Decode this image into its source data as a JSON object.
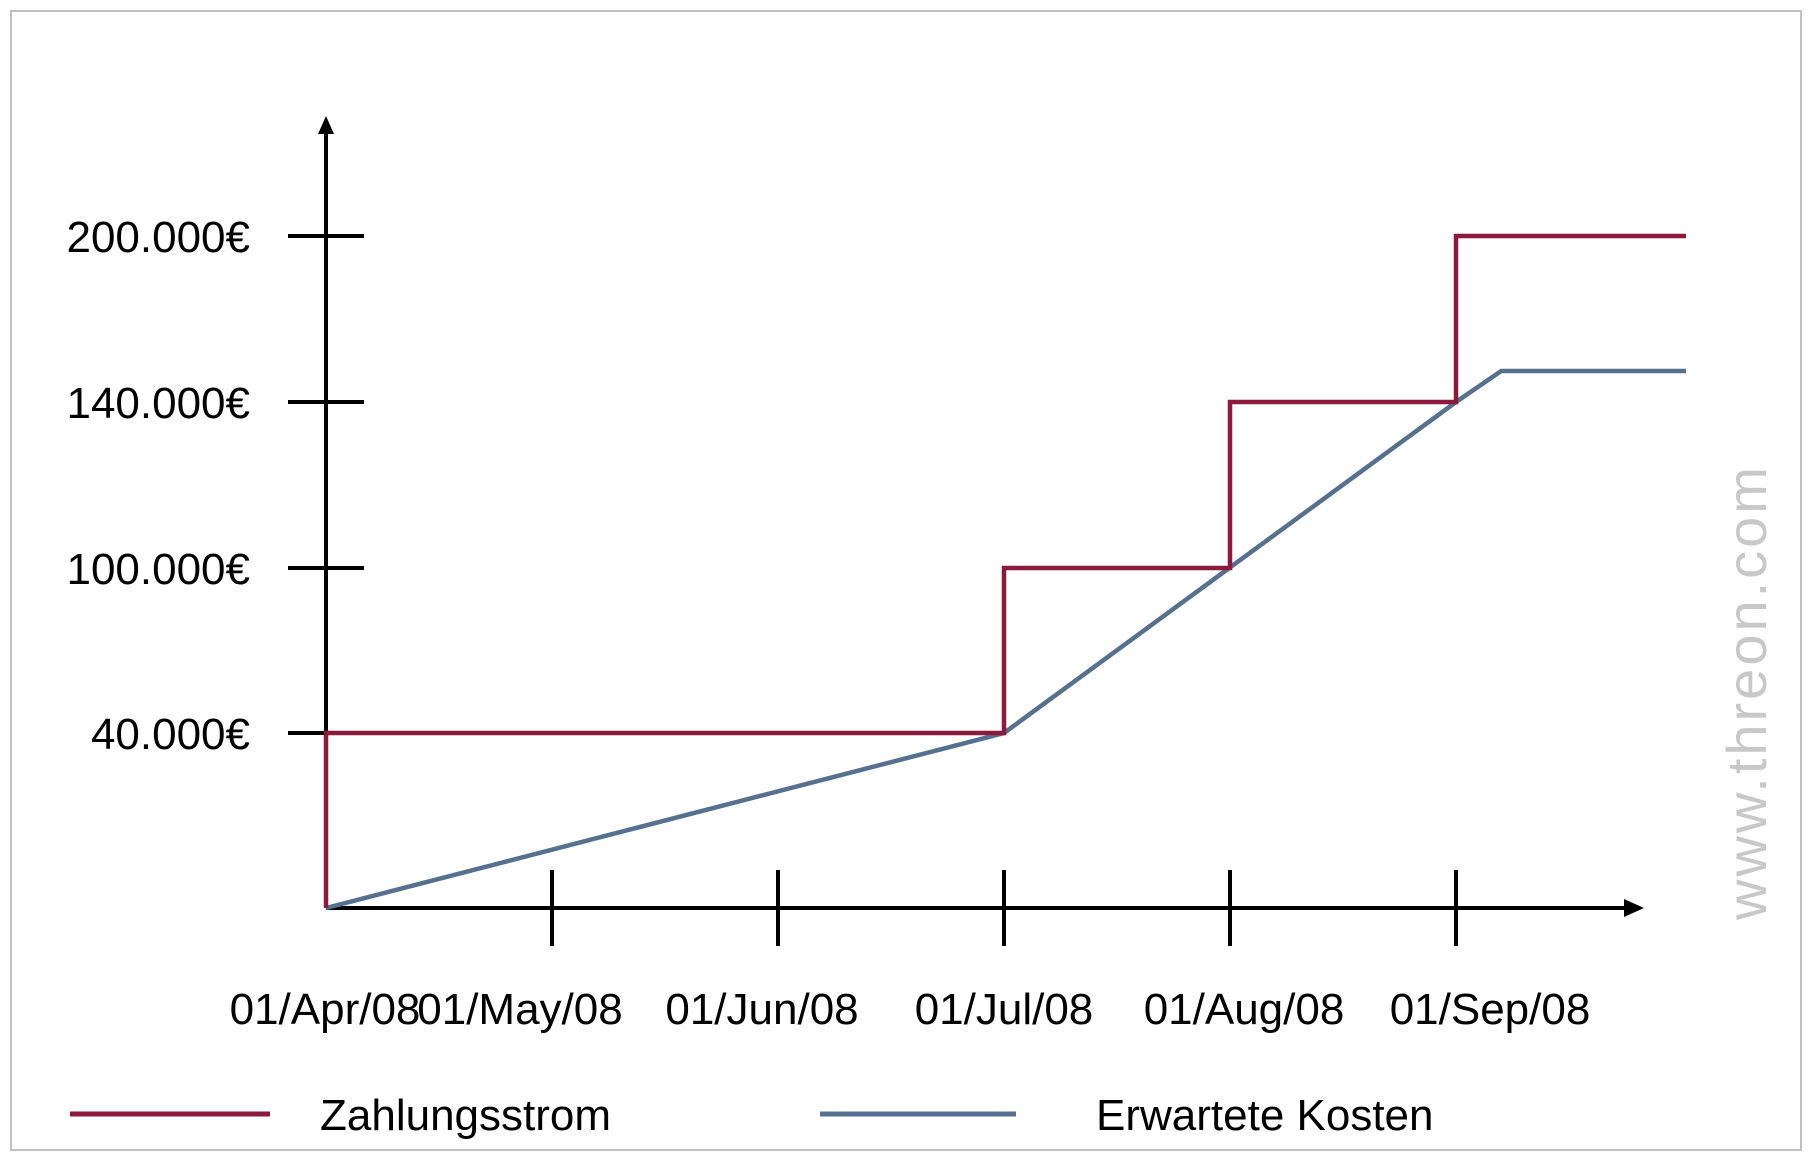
{
  "watermark": "www.threon.com",
  "chart_data": {
    "type": "line",
    "title": "",
    "xlabel": "",
    "ylabel": "",
    "x_ticks": [
      "01/Apr/08",
      "01/May/08",
      "01/Jun/08",
      "01/Jul/08",
      "01/Aug/08",
      "01/Sep/08"
    ],
    "y_ticks": [
      {
        "value": 40000,
        "label": "40.000€"
      },
      {
        "value": 100000,
        "label": "100.000€"
      },
      {
        "value": 140000,
        "label": "140.000€"
      },
      {
        "value": 200000,
        "label": "200.000€"
      }
    ],
    "series": [
      {
        "name": "Zahlungsstrom",
        "color": "#8b1a3c",
        "step": true,
        "points": [
          {
            "x": "01/Apr/08",
            "y": 0
          },
          {
            "x": "01/Apr/08",
            "y": 40000
          },
          {
            "x": "01/Jul/08",
            "y": 40000
          },
          {
            "x": "01/Jul/08",
            "y": 100000
          },
          {
            "x": "01/Aug/08",
            "y": 100000
          },
          {
            "x": "01/Aug/08",
            "y": 140000
          },
          {
            "x": "01/Sep/08",
            "y": 140000
          },
          {
            "x": "01/Sep/08",
            "y": 200000
          },
          {
            "x": "01/Oct/08",
            "y": 200000
          }
        ]
      },
      {
        "name": "Erwartete Kosten",
        "color": "#56718f",
        "step": false,
        "points": [
          {
            "x": "01/Apr/08",
            "y": 0
          },
          {
            "x": "01/Jul/08",
            "y": 40000
          },
          {
            "x": "01/Sep/08",
            "y": 140000
          },
          {
            "x": "07/Sep/08",
            "y": 150000
          },
          {
            "x": "01/Oct/08",
            "y": 150000
          }
        ]
      }
    ],
    "legend": {
      "position": "bottom"
    }
  }
}
